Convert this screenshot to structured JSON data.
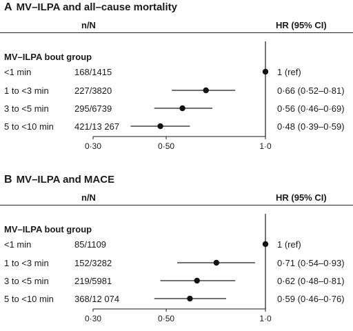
{
  "chart_data": [
    {
      "type": "forest",
      "panel_letter": "A",
      "title": "MV–ILPA and all–cause mortality",
      "columns": {
        "n_over_n": "n/N",
        "hr": "HR (95% CI)"
      },
      "group_label": "MV–ILPA bout group",
      "x_ticks": [
        "0·30",
        "0·50",
        "1·0"
      ],
      "x_tick_values": [
        0.3,
        0.5,
        1.0
      ],
      "x_scale": "log",
      "reference_line": 1.0,
      "rows": [
        {
          "label": "<1 min",
          "counts": "168/1415",
          "hr_text": "1 (ref)",
          "hr": 1.0,
          "lo": 1.0,
          "hi": 1.0
        },
        {
          "label": "1 to <3 min",
          "counts": "227/3820",
          "hr_text": "0·66 (0·52–0·81)",
          "hr": 0.66,
          "lo": 0.52,
          "hi": 0.81
        },
        {
          "label": "3 to <5 min",
          "counts": "295/6739",
          "hr_text": "0·56 (0·46–0·69)",
          "hr": 0.56,
          "lo": 0.46,
          "hi": 0.69
        },
        {
          "label": "5 to <10 min",
          "counts": "421/13 267",
          "hr_text": "0·48 (0·39–0·59)",
          "hr": 0.48,
          "lo": 0.39,
          "hi": 0.59
        }
      ]
    },
    {
      "type": "forest",
      "panel_letter": "B",
      "title": "MV–ILPA and MACE",
      "columns": {
        "n_over_n": "n/N",
        "hr": "HR (95% CI)"
      },
      "group_label": "MV–ILPA bout group",
      "x_ticks": [
        "0·30",
        "0·50",
        "1·0"
      ],
      "x_tick_values": [
        0.3,
        0.5,
        1.0
      ],
      "x_scale": "log",
      "reference_line": 1.0,
      "rows": [
        {
          "label": "<1 min",
          "counts": "85/1109",
          "hr_text": "1 (ref)",
          "hr": 1.0,
          "lo": 1.0,
          "hi": 1.0
        },
        {
          "label": "1 to <3 min",
          "counts": "152/3282",
          "hr_text": "0·71 (0·54–0·93)",
          "hr": 0.71,
          "lo": 0.54,
          "hi": 0.93
        },
        {
          "label": "3 to <5 min",
          "counts": "219/5981",
          "hr_text": "0·62 (0·48–0·81)",
          "hr": 0.62,
          "lo": 0.48,
          "hi": 0.81
        },
        {
          "label": "5 to <10 min",
          "counts": "368/12 074",
          "hr_text": "0·59 (0·46–0·76)",
          "hr": 0.59,
          "lo": 0.46,
          "hi": 0.76
        }
      ]
    }
  ]
}
